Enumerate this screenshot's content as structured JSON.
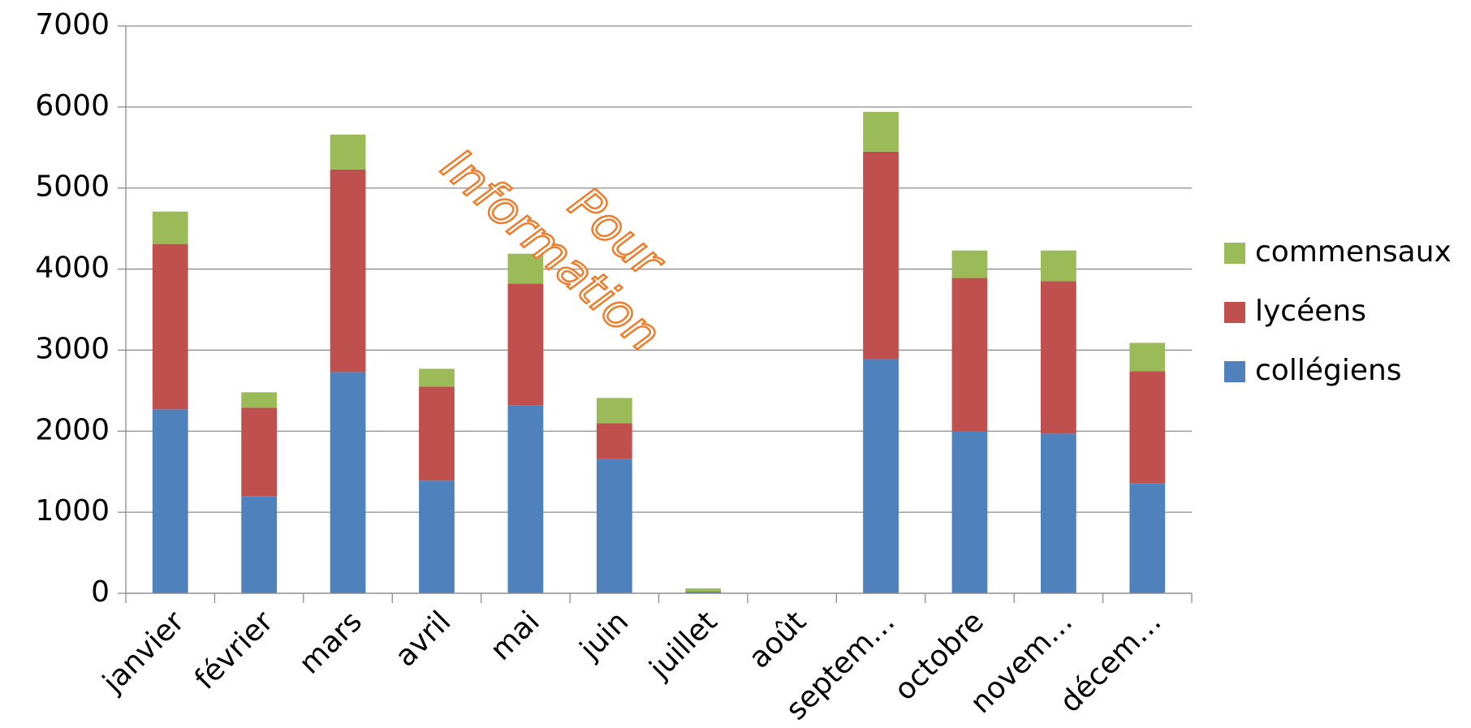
{
  "chart_data": {
    "type": "bar",
    "stacked": true,
    "categories": [
      "janvier",
      "février",
      "mars",
      "avril",
      "mai",
      "juin",
      "juillet",
      "août",
      "septem…",
      "octobre",
      "novem…",
      "décem…"
    ],
    "series": [
      {
        "name": "collégiens",
        "color": "#4f81bd",
        "values": [
          2270,
          1200,
          2730,
          1390,
          2320,
          1660,
          20,
          0,
          2890,
          2000,
          1970,
          1360
        ]
      },
      {
        "name": "lycéens",
        "color": "#c0504d",
        "values": [
          2040,
          1090,
          2500,
          1160,
          1500,
          440,
          0,
          0,
          2560,
          1890,
          1880,
          1380
        ]
      },
      {
        "name": "commensaux",
        "color": "#9bbb59",
        "values": [
          400,
          190,
          430,
          220,
          370,
          310,
          40,
          0,
          490,
          340,
          380,
          350
        ]
      }
    ],
    "ylim": [
      0,
      7000
    ],
    "yticks": [
      0,
      1000,
      2000,
      3000,
      4000,
      5000,
      6000,
      7000
    ],
    "grid": true,
    "legend": "right",
    "annotations": [
      "Pour",
      "Information"
    ]
  }
}
